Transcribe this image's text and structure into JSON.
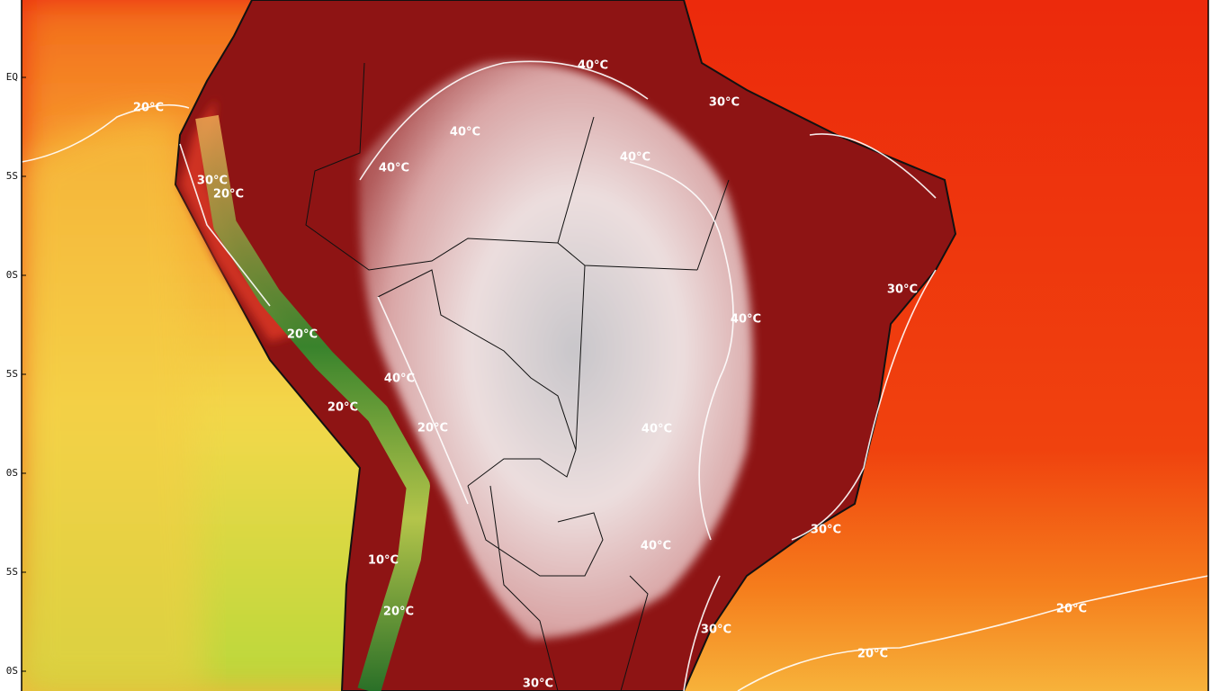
{
  "latitude_labels": [
    "EQ",
    "5S",
    "0S",
    "5S",
    "0S",
    "5S",
    "0S"
  ],
  "contour_labels": [
    "20°C",
    "40°C",
    "30°C",
    "40°C",
    "40°C",
    "40°C",
    "30°C",
    "20°C",
    "30°C",
    "40°C",
    "20°C",
    "40°C",
    "20°C",
    "20°C",
    "40°C",
    "30°C",
    "40°C",
    "10°C",
    "20°C",
    "20°C",
    "30°C",
    "20°C",
    "30°C"
  ]
}
